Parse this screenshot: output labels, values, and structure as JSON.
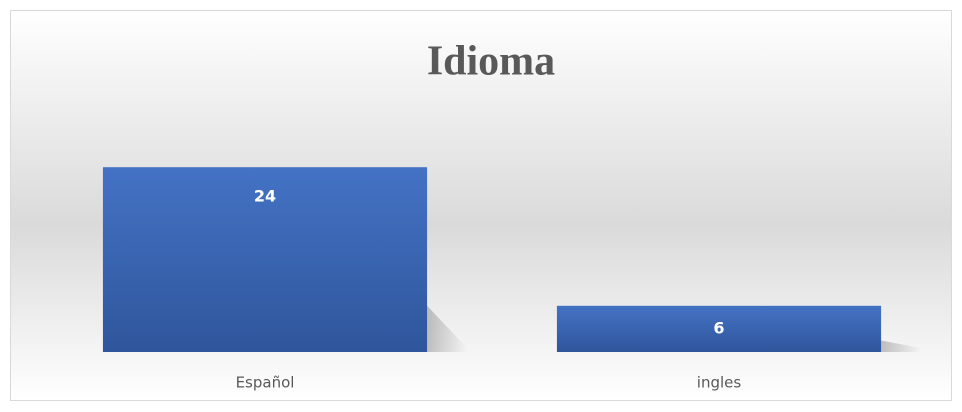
{
  "chart_data": {
    "type": "bar",
    "title": "Idioma",
    "categories": [
      "Español",
      "ingles"
    ],
    "values": [
      24,
      6
    ],
    "color": "#4472c4",
    "ylim": [
      0,
      30
    ],
    "data_labels": true
  }
}
